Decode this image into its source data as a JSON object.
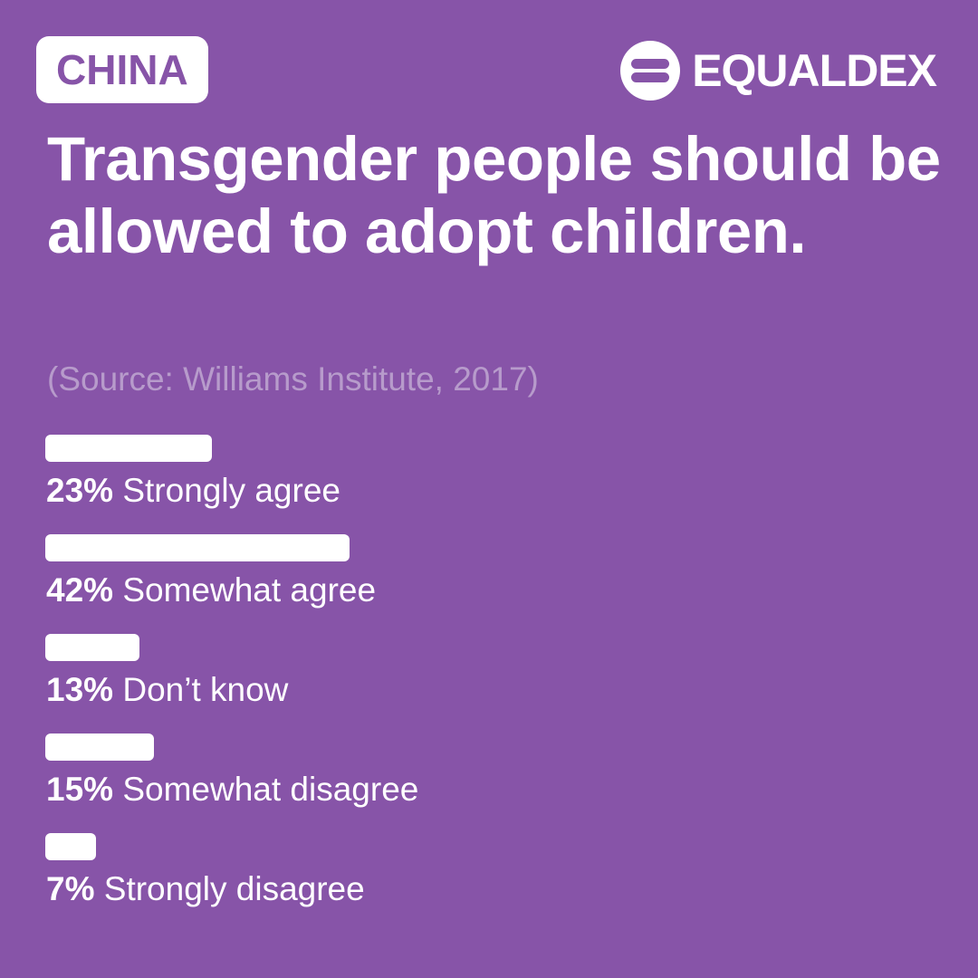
{
  "header": {
    "country": "CHINA",
    "brand": "EQUALDEX",
    "brand_icon": "equaldex-logo-icon"
  },
  "title": "Transgender people should be allowed to adopt children.",
  "source": "(Source: Williams Institute, 2017)",
  "colors": {
    "background": "#8754A8",
    "bar": "#FFFFFF",
    "source_text": "#B79BCB"
  },
  "chart_data": {
    "type": "bar",
    "orientation": "horizontal",
    "title": "Transgender people should be allowed to adopt children.",
    "categories": [
      "Strongly agree",
      "Somewhat agree",
      "Don’t know",
      "Somewhat disagree",
      "Strongly disagree"
    ],
    "values": [
      23,
      42,
      13,
      15,
      7
    ],
    "value_labels": [
      "23%",
      "42%",
      "13%",
      "15%",
      "7%"
    ],
    "unit": "%",
    "xlim": [
      0,
      100
    ],
    "grid": false,
    "legend": "none"
  }
}
